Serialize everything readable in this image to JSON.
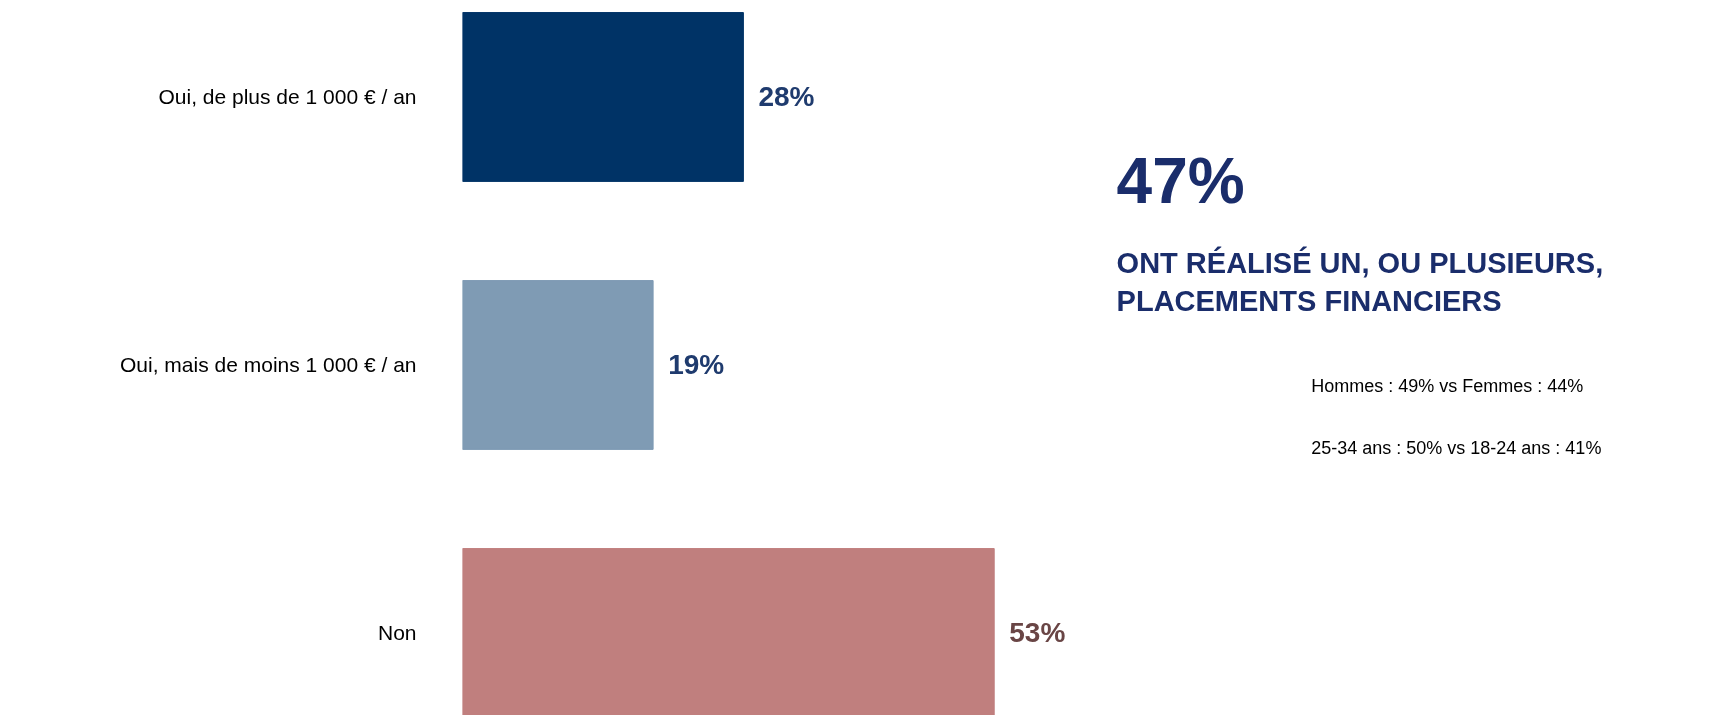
{
  "chart_data": {
    "type": "bar",
    "orientation": "horizontal",
    "categories": [
      "Oui, de plus de 1 000 € / an",
      "Oui, mais de moins 1 000 € / an",
      "Non"
    ],
    "values": [
      28,
      19,
      53
    ],
    "colors": [
      "#003366",
      "#7f9bb4",
      "#c07f7e"
    ],
    "data_labels": true,
    "value_labels": [
      "28%",
      "19%",
      "53%"
    ],
    "grid": false,
    "annotations": [
      "47%",
      "ONT RÉALISÉ UN, OU PLUSIEURS,\nPLACEMENTS FINANCIERS",
      "Hommes : 49% vs Femmes : 44%",
      "25-34 ans : 50% vs 18-24 ans : 41%"
    ]
  }
}
